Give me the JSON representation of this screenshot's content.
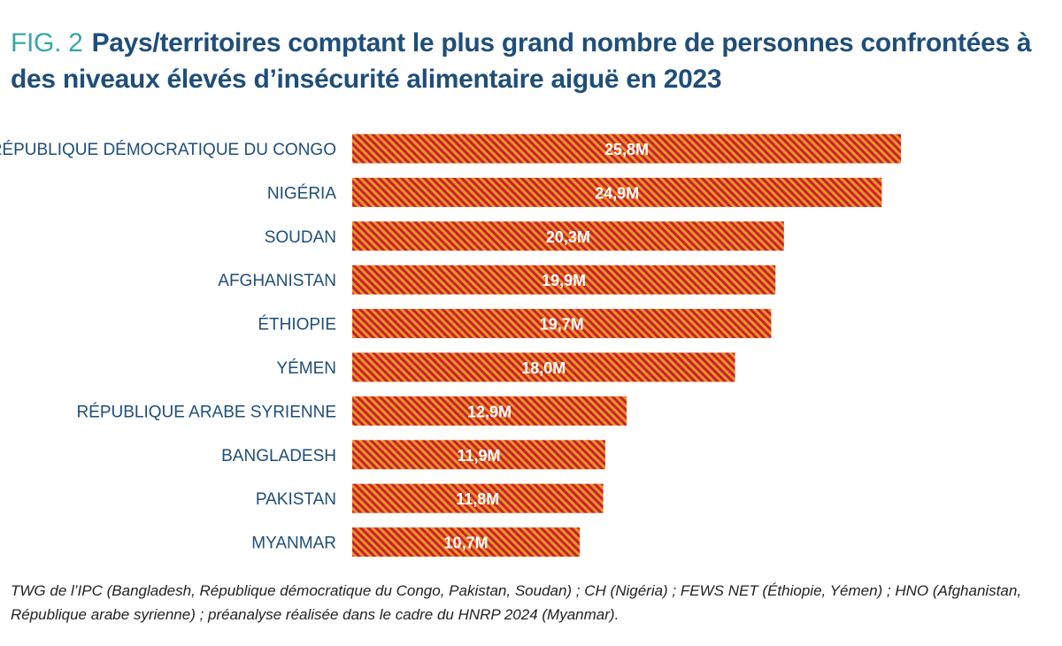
{
  "figure_label": "FIG. 2",
  "chart_data": {
    "type": "bar",
    "orientation": "horizontal",
    "title": "Pays/territoires comptant le plus grand nombre de personnes confrontées à des niveaux élevés d’insécurité alimentaire aiguë en 2023",
    "categories": [
      "RÉPUBLIQUE DÉMOCRATIQUE DU CONGO",
      "NIGÉRIA",
      "SOUDAN",
      "AFGHANISTAN",
      "ÉTHIOPIE",
      "YÉMEN",
      "RÉPUBLIQUE ARABE SYRIENNE",
      "BANGLADESH",
      "PAKISTAN",
      "MYANMAR"
    ],
    "values": [
      25.8,
      24.9,
      20.3,
      19.9,
      19.7,
      18.0,
      12.9,
      11.9,
      11.8,
      10.7
    ],
    "data_labels": [
      "25,8M",
      "24,9M",
      "20,3M",
      "19,9M",
      "19,7M",
      "18,0M",
      "12,9M",
      "11,9M",
      "11,8M",
      "10,7M"
    ],
    "unit": "millions",
    "grid": false,
    "legend": "none",
    "colors": {
      "bar_stripe_a": "#c8202a",
      "bar_stripe_b": "#e8932a",
      "label": "#1f4e79",
      "title": "#1f4e79",
      "fig_label": "#3aa6a6"
    }
  },
  "source_note": "TWG de l’IPC (Bangladesh, République démocratique du Congo, Pakistan, Soudan) ; CH (Nigéria) ; FEWS NET (Éthiopie, Yémen) ; HNO (Afghanistan, République arabe syrienne) ; préanalyse réalisée dans le cadre du HNRP 2024 (Myanmar)."
}
